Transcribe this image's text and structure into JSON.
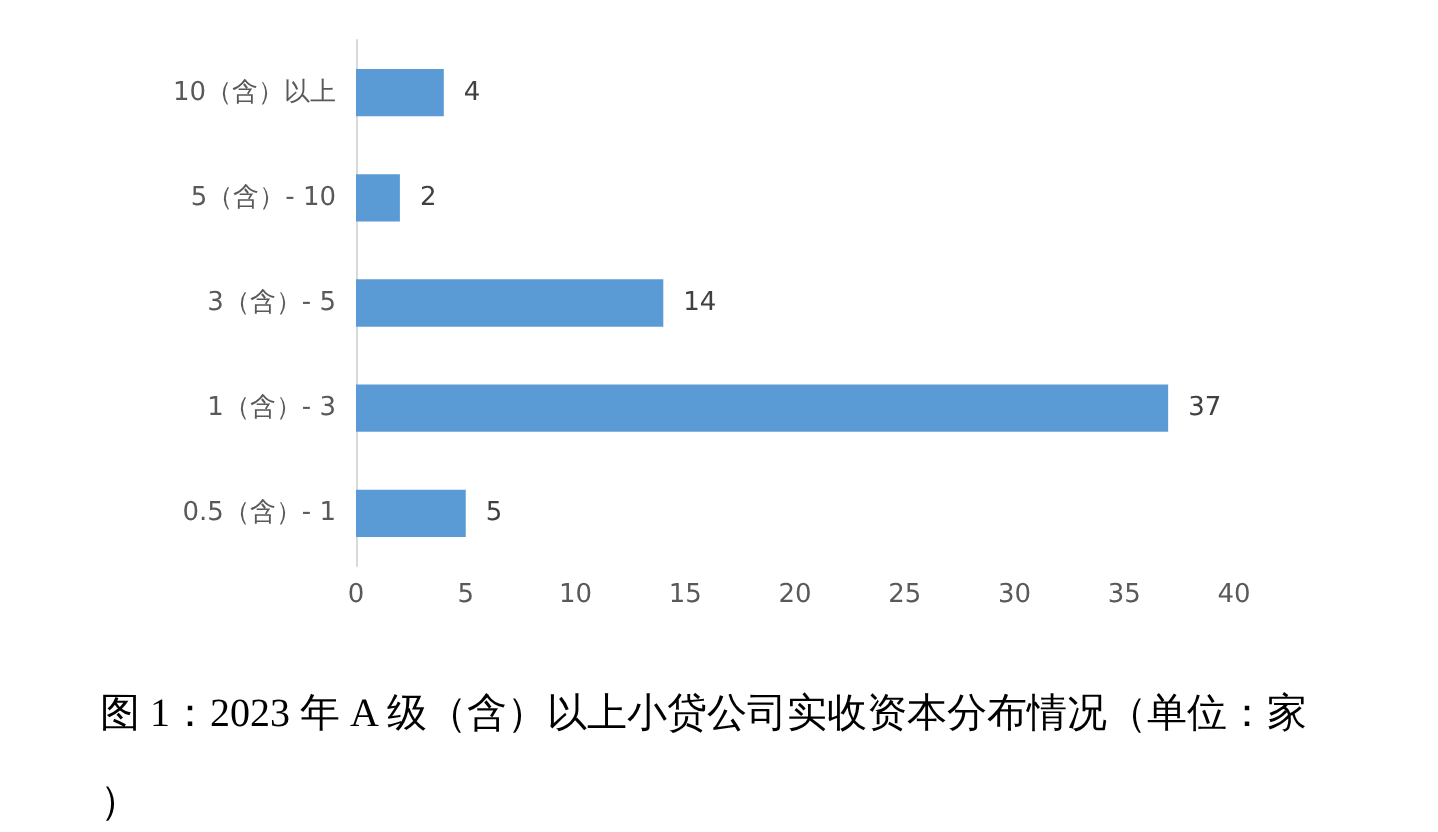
{
  "chart_data": {
    "type": "bar",
    "orientation": "horizontal",
    "title": "图 1：2023 年 A 级（含）以上小贷公司实收资本分布情况（单位：家）",
    "categories": [
      "10（含）以上",
      "5（含）- 10",
      "3（含）- 5",
      "1（含）- 3",
      "0.5（含）- 1"
    ],
    "values": [
      4,
      2,
      14,
      37,
      5
    ],
    "color": "#5b9bd5",
    "xlim": [
      0,
      40
    ],
    "xticks": [
      0,
      5,
      10,
      15,
      20,
      25,
      30,
      35,
      40
    ],
    "grid": false,
    "data_labels": true
  }
}
